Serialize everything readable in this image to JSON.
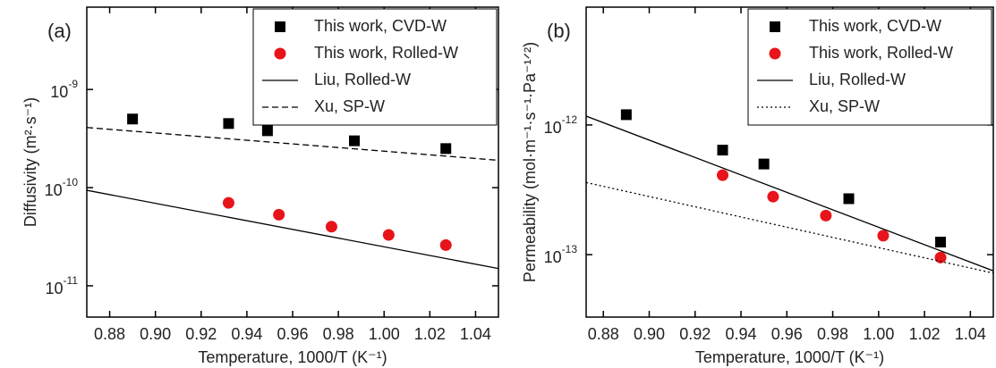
{
  "chart_data": [
    {
      "type": "scatter",
      "panel_label": "(a)",
      "x_label": "Temperature, 1000/T (K⁻¹)",
      "y_label": "Diffusivity (m²·s⁻¹)",
      "xlim": [
        0.87,
        1.05
      ],
      "ylim": [
        4.8e-12,
        6.9e-09
      ],
      "y_log": true,
      "legend": "upper right",
      "xticks": [
        0.88,
        {
          "value": 0.9,
          "label": "0.90"
        },
        0.92,
        0.94,
        0.96,
        0.98,
        {
          "value": 1,
          "label": "1.00"
        },
        1.02,
        1.04
      ],
      "yticks": [
        {
          "value": 1e-11,
          "label": "10-11"
        },
        {
          "value": 1e-10,
          "label": "10-10"
        },
        {
          "value": 1e-09,
          "label": "10-9"
        }
      ],
      "series": [
        {
          "name": "This work, CVD-W",
          "marker": "square",
          "color": "#000000",
          "x": [
            0.89,
            0.932,
            0.949,
            0.987,
            1.027
          ],
          "values": [
            5e-10,
            4.5e-10,
            3.8e-10,
            3e-10,
            2.5e-10
          ]
        },
        {
          "name": "This work, Rolled-W",
          "marker": "circle",
          "color": "#e8141b",
          "x": [
            0.932,
            0.954,
            0.977,
            1.002,
            1.027
          ],
          "values": [
            7e-11,
            5.3e-11,
            4e-11,
            3.3e-11,
            2.6e-11
          ]
        },
        {
          "name": "Liu, Rolled-W",
          "marker": "line",
          "dash": "solid",
          "color": "#000000",
          "x": [
            0.87,
            1.05
          ],
          "values": [
            9.4e-11,
            1.5e-11
          ]
        },
        {
          "name": "Xu, SP-W",
          "marker": "line",
          "dash": "dashed",
          "color": "#000000",
          "x": [
            0.87,
            1.05
          ],
          "values": [
            4.1e-10,
            1.9e-10
          ]
        }
      ]
    },
    {
      "type": "scatter",
      "panel_label": "(b)",
      "x_label": "Temperature, 1000/T (K⁻¹)",
      "y_label": "Permeability (mol·m⁻¹·s⁻¹·Pa⁻¹ᐟ²)",
      "xlim": [
        0.8725,
        1.05
      ],
      "ylim": [
        3.3e-14,
        8.1e-12
      ],
      "y_log": true,
      "legend": "upper right",
      "xticks": [
        0.88,
        {
          "value": 0.9,
          "label": "0.90"
        },
        0.92,
        0.94,
        0.96,
        0.98,
        {
          "value": 1,
          "label": "1.00"
        },
        1.02,
        1.04
      ],
      "yticks": [
        {
          "value": 1e-13,
          "label": "10-13"
        },
        {
          "value": 1e-12,
          "label": "10-12"
        }
      ],
      "series": [
        {
          "name": "This work, CVD-W",
          "marker": "square",
          "color": "#000000",
          "x": [
            0.89,
            0.932,
            0.95,
            0.987,
            1.027
          ],
          "values": [
            1.2e-12,
            6.4e-13,
            5e-13,
            2.7e-13,
            1.25e-13
          ]
        },
        {
          "name": "This work, Rolled-W",
          "marker": "circle",
          "color": "#e8141b",
          "x": [
            0.932,
            0.954,
            0.977,
            1.002,
            1.027
          ],
          "values": [
            4.1e-13,
            2.8e-13,
            2e-13,
            1.4e-13,
            9.5e-14
          ]
        },
        {
          "name": "Liu, Rolled-W",
          "marker": "line",
          "dash": "solid",
          "color": "#000000",
          "x": [
            0.8725,
            1.05
          ],
          "values": [
            1.17e-12,
            7.5e-14
          ]
        },
        {
          "name": "Xu, SP-W",
          "marker": "line",
          "dash": "dotted",
          "color": "#000000",
          "x": [
            0.8725,
            1.05
          ],
          "values": [
            3.6e-13,
            7.2e-14
          ]
        }
      ]
    }
  ]
}
